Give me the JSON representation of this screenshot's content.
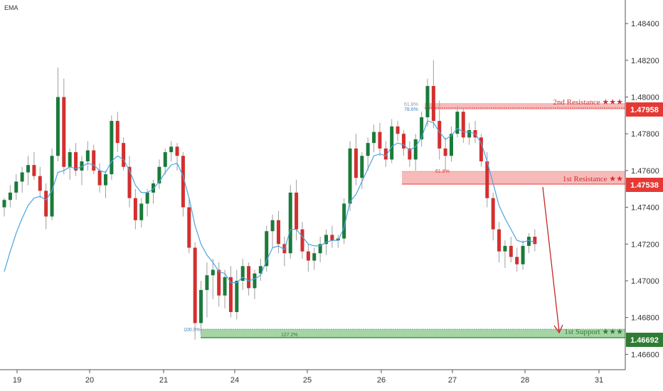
{
  "indicator_label": "EMA",
  "colors": {
    "up": "#26a69a",
    "up_dark": "#1b7a3a",
    "down": "#d32f2f",
    "ema": "#4aa3df",
    "resistance_fill": "#f4a3a3",
    "resistance_line": "#e53935",
    "support_fill": "#8fc98f",
    "support_line": "#2e7d32",
    "arrow": "#c62828"
  },
  "price_axis": {
    "ticks": [
      "1.48400",
      "1.48200",
      "1.48000",
      "1.47800",
      "1.47600",
      "1.47400",
      "1.47200",
      "1.47000",
      "1.46800",
      "1.46600"
    ]
  },
  "time_axis": {
    "ticks": [
      "19",
      "20",
      "21",
      "24",
      "25",
      "26",
      "27",
      "28",
      "31"
    ]
  },
  "levels": {
    "resistance2": {
      "label": "2nd Resistance ★★★",
      "price": "1.47958",
      "fib_a": "61.8%",
      "fib_b": "78.6%"
    },
    "resistance1": {
      "label": "1st Resistance ★★",
      "price": "1.47538",
      "fib_a": "61.8%"
    },
    "support1": {
      "label": "1st Support ★★★",
      "price": "1.46692",
      "fib_a": "100.0%",
      "fib_b": "127.2%"
    }
  },
  "chart_data": {
    "type": "candlestick",
    "ylim": [
      1.4655,
      1.4855
    ],
    "x_categories": [
      "19",
      "20",
      "21",
      "24",
      "25",
      "26",
      "27",
      "28",
      "31"
    ],
    "candles": [
      [
        1.474,
        1.4745,
        1.4735,
        1.4744
      ],
      [
        1.4744,
        1.4752,
        1.474,
        1.4748
      ],
      [
        1.4748,
        1.4758,
        1.4744,
        1.4754
      ],
      [
        1.4754,
        1.4762,
        1.4748,
        1.4759
      ],
      [
        1.4759,
        1.4768,
        1.4752,
        1.4763
      ],
      [
        1.4763,
        1.477,
        1.4755,
        1.4757
      ],
      [
        1.4757,
        1.4762,
        1.4745,
        1.4749
      ],
      [
        1.4749,
        1.4753,
        1.4728,
        1.4735
      ],
      [
        1.4735,
        1.4772,
        1.4733,
        1.4768
      ],
      [
        1.4768,
        1.4816,
        1.4765,
        1.48
      ],
      [
        1.48,
        1.481,
        1.4758,
        1.4762
      ],
      [
        1.4762,
        1.4772,
        1.4755,
        1.477
      ],
      [
        1.477,
        1.4775,
        1.4757,
        1.476
      ],
      [
        1.476,
        1.4768,
        1.4752,
        1.4765
      ],
      [
        1.4765,
        1.4776,
        1.476,
        1.4771
      ],
      [
        1.4771,
        1.4774,
        1.4758,
        1.476
      ],
      [
        1.476,
        1.4764,
        1.4748,
        1.4752
      ],
      [
        1.4752,
        1.476,
        1.4745,
        1.4758
      ],
      [
        1.4758,
        1.479,
        1.4755,
        1.4787
      ],
      [
        1.4787,
        1.4792,
        1.477,
        1.4775
      ],
      [
        1.4775,
        1.4778,
        1.476,
        1.4762
      ],
      [
        1.4762,
        1.4768,
        1.474,
        1.4745
      ],
      [
        1.4745,
        1.475,
        1.4728,
        1.4733
      ],
      [
        1.4733,
        1.4745,
        1.4729,
        1.4742
      ],
      [
        1.4742,
        1.475,
        1.4735,
        1.4748
      ],
      [
        1.4748,
        1.4755,
        1.4742,
        1.4753
      ],
      [
        1.4753,
        1.4766,
        1.475,
        1.4762
      ],
      [
        1.4762,
        1.4772,
        1.4758,
        1.477
      ],
      [
        1.477,
        1.4776,
        1.4765,
        1.4773
      ],
      [
        1.4773,
        1.4775,
        1.476,
        1.4768
      ],
      [
        1.4768,
        1.477,
        1.4735,
        1.474
      ],
      [
        1.474,
        1.4745,
        1.4715,
        1.4718
      ],
      [
        1.4718,
        1.4721,
        1.4668,
        1.4677
      ],
      [
        1.4677,
        1.47,
        1.4671,
        1.4695
      ],
      [
        1.4695,
        1.471,
        1.468,
        1.4703
      ],
      [
        1.4703,
        1.4712,
        1.469,
        1.4706
      ],
      [
        1.4706,
        1.471,
        1.4686,
        1.4692
      ],
      [
        1.4692,
        1.4706,
        1.4685,
        1.4702
      ],
      [
        1.4702,
        1.4708,
        1.468,
        1.4683
      ],
      [
        1.4683,
        1.4706,
        1.4679,
        1.47
      ],
      [
        1.47,
        1.4712,
        1.4695,
        1.4708
      ],
      [
        1.4708,
        1.471,
        1.4692,
        1.4696
      ],
      [
        1.4696,
        1.4706,
        1.469,
        1.4704
      ],
      [
        1.4704,
        1.4712,
        1.47,
        1.4708
      ],
      [
        1.4708,
        1.473,
        1.4705,
        1.4727
      ],
      [
        1.4727,
        1.4736,
        1.4718,
        1.4733
      ],
      [
        1.4733,
        1.4738,
        1.4715,
        1.472
      ],
      [
        1.472,
        1.4724,
        1.4708,
        1.4715
      ],
      [
        1.4715,
        1.4752,
        1.4712,
        1.4748
      ],
      [
        1.4748,
        1.4755,
        1.4722,
        1.4728
      ],
      [
        1.4728,
        1.4732,
        1.4712,
        1.4716
      ],
      [
        1.4716,
        1.472,
        1.4705,
        1.4711
      ],
      [
        1.4711,
        1.4718,
        1.4706,
        1.4715
      ],
      [
        1.4715,
        1.4724,
        1.471,
        1.472
      ],
      [
        1.472,
        1.4728,
        1.4714,
        1.4725
      ],
      [
        1.4725,
        1.473,
        1.4718,
        1.4722
      ],
      [
        1.4722,
        1.4725,
        1.4718,
        1.4723
      ],
      [
        1.4723,
        1.4745,
        1.472,
        1.4742
      ],
      [
        1.4742,
        1.4776,
        1.4738,
        1.4772
      ],
      [
        1.4772,
        1.478,
        1.4752,
        1.4756
      ],
      [
        1.4756,
        1.477,
        1.475,
        1.4768
      ],
      [
        1.4768,
        1.4778,
        1.476,
        1.4775
      ],
      [
        1.4775,
        1.4785,
        1.477,
        1.4781
      ],
      [
        1.4781,
        1.4786,
        1.4768,
        1.4772
      ],
      [
        1.4772,
        1.4776,
        1.4762,
        1.4766
      ],
      [
        1.4766,
        1.4788,
        1.4764,
        1.4784
      ],
      [
        1.4784,
        1.4787,
        1.4776,
        1.478
      ],
      [
        1.478,
        1.4782,
        1.4768,
        1.4772
      ],
      [
        1.4772,
        1.4776,
        1.4762,
        1.4766
      ],
      [
        1.4766,
        1.478,
        1.476,
        1.4777
      ],
      [
        1.4777,
        1.4792,
        1.4773,
        1.4789
      ],
      [
        1.4789,
        1.481,
        1.4784,
        1.4806
      ],
      [
        1.4806,
        1.482,
        1.4783,
        1.4787
      ],
      [
        1.4787,
        1.4798,
        1.4766,
        1.4772
      ],
      [
        1.4772,
        1.4778,
        1.476,
        1.4768
      ],
      [
        1.4768,
        1.4784,
        1.4765,
        1.478
      ],
      [
        1.478,
        1.4795,
        1.4778,
        1.4792
      ],
      [
        1.4792,
        1.4794,
        1.4775,
        1.4778
      ],
      [
        1.4778,
        1.4786,
        1.4774,
        1.4782
      ],
      [
        1.4782,
        1.4787,
        1.4775,
        1.4778
      ],
      [
        1.4778,
        1.478,
        1.4762,
        1.4765
      ],
      [
        1.4765,
        1.477,
        1.474,
        1.4745
      ],
      [
        1.4745,
        1.4748,
        1.4722,
        1.4728
      ],
      [
        1.4728,
        1.4732,
        1.471,
        1.4716
      ],
      [
        1.4716,
        1.4722,
        1.4707,
        1.4719
      ],
      [
        1.4719,
        1.4724,
        1.471,
        1.4713
      ],
      [
        1.4713,
        1.4718,
        1.4705,
        1.4709
      ],
      [
        1.4709,
        1.4722,
        1.4706,
        1.4719
      ],
      [
        1.4719,
        1.4726,
        1.4715,
        1.4724
      ],
      [
        1.4724,
        1.4728,
        1.4716,
        1.472
      ]
    ],
    "ema": [
      1.4705,
      1.4716,
      1.4726,
      1.4734,
      1.4741,
      1.4745,
      1.4746,
      1.4744,
      1.4749,
      1.4759,
      1.476,
      1.4762,
      1.4761,
      1.4762,
      1.4764,
      1.4763,
      1.476,
      1.4759,
      1.4765,
      1.4768,
      1.4766,
      1.476,
      1.4752,
      1.4748,
      1.4748,
      1.475,
      1.4754,
      1.4759,
      1.4763,
      1.4764,
      1.4757,
      1.4745,
      1.473,
      1.472,
      1.4714,
      1.471,
      1.4705,
      1.4704,
      1.4699,
      1.4699,
      1.4702,
      1.47,
      1.4701,
      1.4703,
      1.4711,
      1.4718,
      1.4719,
      1.4717,
      1.4728,
      1.4728,
      1.4724,
      1.472,
      1.4719,
      1.4719,
      1.4721,
      1.4722,
      1.4722,
      1.4729,
      1.4743,
      1.4747,
      1.4754,
      1.4761,
      1.4768,
      1.4769,
      1.4768,
      1.4773,
      1.4775,
      1.4774,
      1.4771,
      1.4773,
      1.4778,
      1.4787,
      1.4786,
      1.4781,
      1.4777,
      1.4779,
      1.4783,
      1.4781,
      1.4781,
      1.478,
      1.4775,
      1.4765,
      1.4753,
      1.4741,
      1.4734,
      1.4728,
      1.4722,
      1.4721,
      1.4722,
      1.4721
    ]
  }
}
